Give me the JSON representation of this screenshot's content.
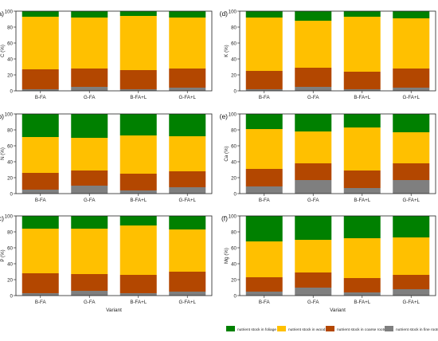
{
  "figure": {
    "series": [
      {
        "key": "fine",
        "name": "nutrient stock in fine roots",
        "color": "#7f7f7f"
      },
      {
        "key": "coarse",
        "name": "nutrient stock in  coarse roots",
        "color": "#b34700"
      },
      {
        "key": "wood",
        "name": "nutrient stock in wood",
        "color": "#ffc000"
      },
      {
        "key": "foliage",
        "name": "nutrient stock in foliage",
        "color": "#008000"
      }
    ],
    "legend_order": [
      "foliage",
      "wood",
      "coarse",
      "fine"
    ],
    "xlabel": "Variant"
  },
  "chart_data": [
    {
      "type": "bar",
      "stacked": true,
      "panel": "(a)",
      "ylabel": "C (%)",
      "ylim": [
        0,
        100
      ],
      "yticks": [
        0,
        20,
        40,
        60,
        80,
        100
      ],
      "categories": [
        "B-FA",
        "G-FA",
        "B-FA+L",
        "G-FA+L"
      ],
      "series": [
        {
          "name": "nutrient stock in fine roots",
          "values": [
            2,
            5,
            2,
            4
          ]
        },
        {
          "name": "nutrient stock in  coarse roots",
          "values": [
            25,
            23,
            24,
            24
          ]
        },
        {
          "name": "nutrient stock in wood",
          "values": [
            66,
            64,
            68,
            64
          ]
        },
        {
          "name": "nutrient stock in foliage",
          "values": [
            7,
            8,
            6,
            8
          ]
        }
      ]
    },
    {
      "type": "bar",
      "stacked": true,
      "panel": "(d)",
      "ylabel": "K (%)",
      "ylim": [
        0,
        100
      ],
      "yticks": [
        0,
        20,
        40,
        60,
        80,
        100
      ],
      "categories": [
        "B-FA",
        "G-FA",
        "B-FA+L",
        "G-FA+L"
      ],
      "series": [
        {
          "name": "nutrient stock in fine roots",
          "values": [
            2,
            5,
            2,
            4
          ]
        },
        {
          "name": "nutrient stock in  coarse roots",
          "values": [
            23,
            24,
            22,
            24
          ]
        },
        {
          "name": "nutrient stock in wood",
          "values": [
            67,
            59,
            69,
            63
          ]
        },
        {
          "name": "nutrient stock in foliage",
          "values": [
            8,
            12,
            7,
            9
          ]
        }
      ]
    },
    {
      "type": "bar",
      "stacked": true,
      "panel": "(b)",
      "ylabel": "N (%)",
      "ylim": [
        0,
        100
      ],
      "yticks": [
        0,
        20,
        40,
        60,
        80,
        100
      ],
      "categories": [
        "B-FA",
        "G-FA",
        "B-FA+L",
        "G-FA+L"
      ],
      "series": [
        {
          "name": "nutrient stock in fine roots",
          "values": [
            5,
            10,
            4,
            8
          ]
        },
        {
          "name": "nutrient stock in  coarse roots",
          "values": [
            21,
            19,
            21,
            20
          ]
        },
        {
          "name": "nutrient stock in wood",
          "values": [
            45,
            41,
            48,
            44
          ]
        },
        {
          "name": "nutrient stock in foliage",
          "values": [
            29,
            30,
            27,
            28
          ]
        }
      ]
    },
    {
      "type": "bar",
      "stacked": true,
      "panel": "(e)",
      "ylabel": "Ca (%)",
      "ylim": [
        0,
        100
      ],
      "yticks": [
        0,
        20,
        40,
        60,
        80,
        100
      ],
      "categories": [
        "B-FA",
        "G-FA",
        "B-FA+L",
        "G-FA+L"
      ],
      "series": [
        {
          "name": "nutrient stock in fine roots",
          "values": [
            9,
            17,
            7,
            17
          ]
        },
        {
          "name": "nutrient stock in  coarse roots",
          "values": [
            22,
            21,
            22,
            21
          ]
        },
        {
          "name": "nutrient stock in wood",
          "values": [
            50,
            40,
            54,
            39
          ]
        },
        {
          "name": "nutrient stock in foliage",
          "values": [
            19,
            22,
            17,
            23
          ]
        }
      ]
    },
    {
      "type": "bar",
      "stacked": true,
      "panel": "(c)",
      "ylabel": "P (%)",
      "ylim": [
        0,
        100
      ],
      "yticks": [
        0,
        20,
        40,
        60,
        80,
        100
      ],
      "categories": [
        "B-FA",
        "G-FA",
        "B-FA+L",
        "G-FA+L"
      ],
      "series": [
        {
          "name": "nutrient stock in fine roots",
          "values": [
            3,
            6,
            3,
            5
          ]
        },
        {
          "name": "nutrient stock in  coarse roots",
          "values": [
            25,
            21,
            23,
            25
          ]
        },
        {
          "name": "nutrient stock in wood",
          "values": [
            56,
            57,
            62,
            53
          ]
        },
        {
          "name": "nutrient stock in foliage",
          "values": [
            16,
            16,
            12,
            17
          ]
        }
      ]
    },
    {
      "type": "bar",
      "stacked": true,
      "panel": "(f)",
      "ylabel": "Mg (%)",
      "ylim": [
        0,
        100
      ],
      "yticks": [
        0,
        20,
        40,
        60,
        80,
        100
      ],
      "categories": [
        "B-FA",
        "G-FA",
        "B-FA+L",
        "G-FA+L"
      ],
      "series": [
        {
          "name": "nutrient stock in fine roots",
          "values": [
            5,
            10,
            4,
            8
          ]
        },
        {
          "name": "nutrient stock in  coarse roots",
          "values": [
            18,
            19,
            18,
            18
          ]
        },
        {
          "name": "nutrient stock in wood",
          "values": [
            45,
            41,
            50,
            47
          ]
        },
        {
          "name": "nutrient stock in foliage",
          "values": [
            32,
            30,
            28,
            27
          ]
        }
      ]
    }
  ]
}
